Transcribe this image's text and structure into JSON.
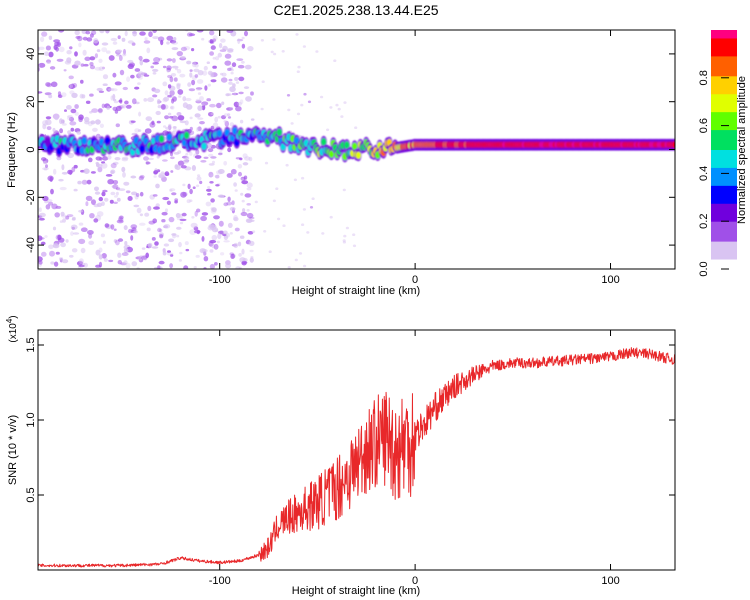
{
  "figure": {
    "title": "C2E1.2025.238.13.44.E25"
  },
  "chart_data": [
    {
      "type": "heatmap",
      "xlabel": "Height of straight line (km)",
      "ylabel": "Frequency (Hz)",
      "xlim": [
        -193,
        133
      ],
      "ylim": [
        -50,
        50
      ],
      "xticks": [
        -100,
        0,
        100
      ],
      "yticks": [
        -40,
        -20,
        0,
        20,
        40
      ],
      "colorbar": {
        "label": "Normalized spectral amplitude",
        "range": [
          0,
          1
        ],
        "ticks": [
          "0.0",
          "0.2",
          "0.4",
          "0.6",
          "0.8"
        ],
        "colors": [
          "#ffffff",
          "#d9c4f2",
          "#a050e8",
          "#7000dd",
          "#0000ff",
          "#0090ff",
          "#00e0e0",
          "#00e060",
          "#60ff00",
          "#e0ff00",
          "#ffd000",
          "#ff6000",
          "#ff0000",
          "#ff0080"
        ]
      },
      "ridge": [
        {
          "x": -193,
          "freq": 2,
          "amp": 0.35
        },
        {
          "x": -160,
          "freq": 2,
          "amp": 0.45
        },
        {
          "x": -135,
          "freq": 2,
          "amp": 0.4
        },
        {
          "x": -120,
          "freq": 3,
          "amp": 0.45
        },
        {
          "x": -100,
          "freq": 4,
          "amp": 0.4
        },
        {
          "x": -80,
          "freq": 6,
          "amp": 0.45
        },
        {
          "x": -60,
          "freq": 3,
          "amp": 0.5
        },
        {
          "x": -45,
          "freq": 0,
          "amp": 0.55
        },
        {
          "x": -30,
          "freq": 0,
          "amp": 0.6
        },
        {
          "x": -15,
          "freq": 0,
          "amp": 0.75
        },
        {
          "x": 0,
          "freq": 2,
          "amp": 0.85
        },
        {
          "x": 50,
          "freq": 2,
          "amp": 0.95
        },
        {
          "x": 90,
          "freq": 2,
          "amp": 0.95
        },
        {
          "x": 133,
          "freq": 2,
          "amp": 0.95
        }
      ]
    },
    {
      "type": "line",
      "xlabel": "Height of straight line (km)",
      "ylabel": "SNR (10 * v/v)",
      "scale_label": "(x10",
      "scale_exp": "4",
      "scale_close": ")",
      "xlim": [
        -193,
        133
      ],
      "ylim": [
        0,
        1.6
      ],
      "xticks": [
        -100,
        0,
        100
      ],
      "yticks": [
        "0.5",
        "1.0",
        "1.5"
      ],
      "series": [
        {
          "name": "SNR",
          "color": "#e8282a",
          "x": [
            -193,
            -170,
            -150,
            -130,
            -120,
            -110,
            -100,
            -90,
            -80,
            -75,
            -70,
            -65,
            -60,
            -55,
            -50,
            -45,
            -40,
            -35,
            -30,
            -25,
            -20,
            -15,
            -10,
            -5,
            0,
            5,
            10,
            20,
            30,
            40,
            50,
            60,
            70,
            80,
            90,
            100,
            110,
            120,
            133
          ],
          "y": [
            0.03,
            0.03,
            0.03,
            0.04,
            0.08,
            0.06,
            0.05,
            0.06,
            0.1,
            0.15,
            0.3,
            0.35,
            0.38,
            0.42,
            0.45,
            0.5,
            0.55,
            0.62,
            0.7,
            0.8,
            0.85,
            0.9,
            0.8,
            0.85,
            0.9,
            0.98,
            1.08,
            1.22,
            1.3,
            1.36,
            1.38,
            1.38,
            1.39,
            1.4,
            1.41,
            1.42,
            1.45,
            1.44,
            1.4
          ]
        }
      ]
    }
  ]
}
